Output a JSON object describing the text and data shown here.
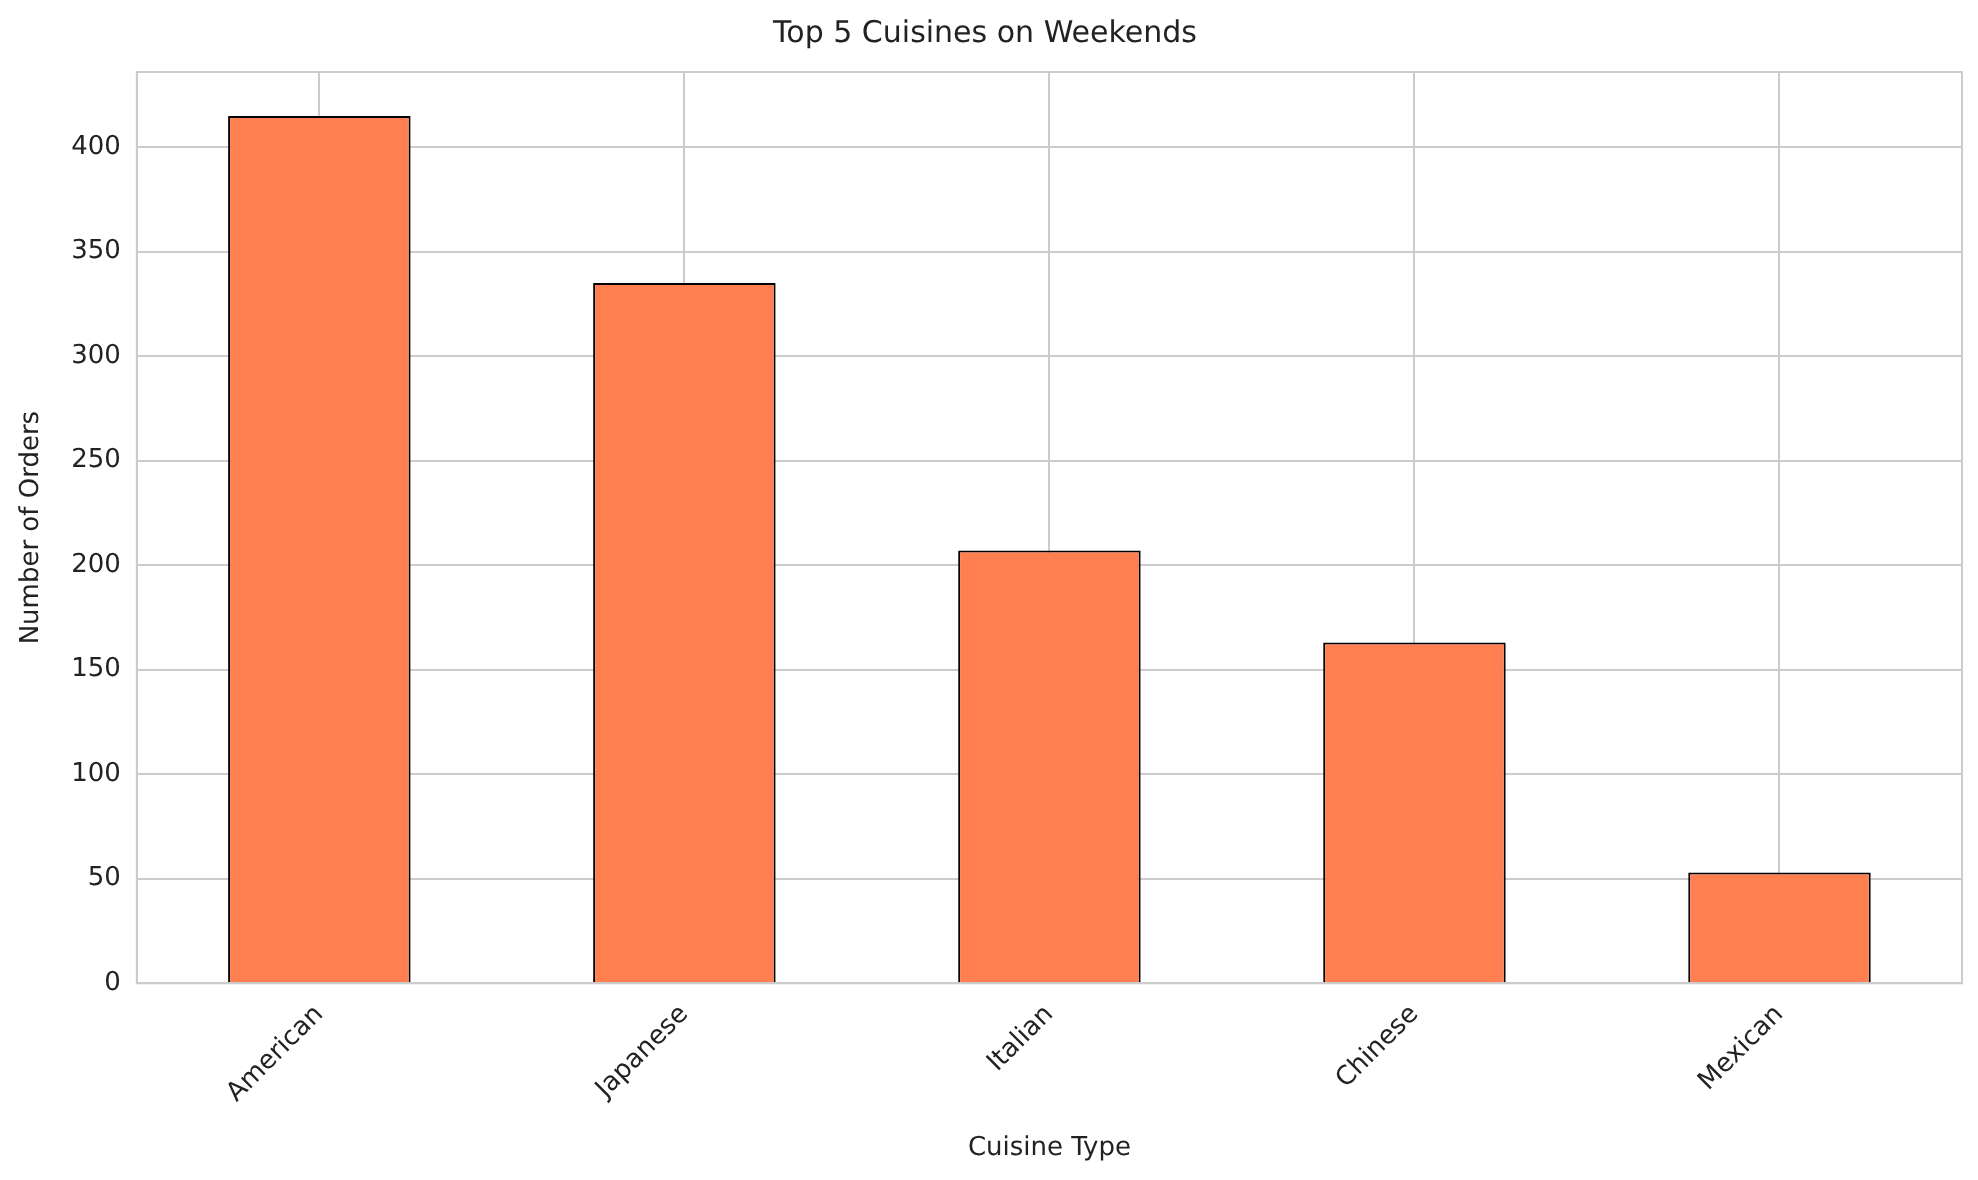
{
  "chart_data": {
    "type": "bar",
    "title": "Top 5 Cuisines on Weekends",
    "xlabel": "Cuisine Type",
    "ylabel": "Number of Orders",
    "categories": [
      "American",
      "Japanese",
      "Italian",
      "Chinese",
      "Mexican"
    ],
    "values": [
      415,
      335,
      207,
      163,
      53
    ],
    "color": "#ff7f50",
    "ylim": [
      0,
      436
    ],
    "yticks": [
      0,
      50,
      100,
      150,
      200,
      250,
      300,
      350,
      400
    ],
    "grid": true,
    "legend": false
  }
}
